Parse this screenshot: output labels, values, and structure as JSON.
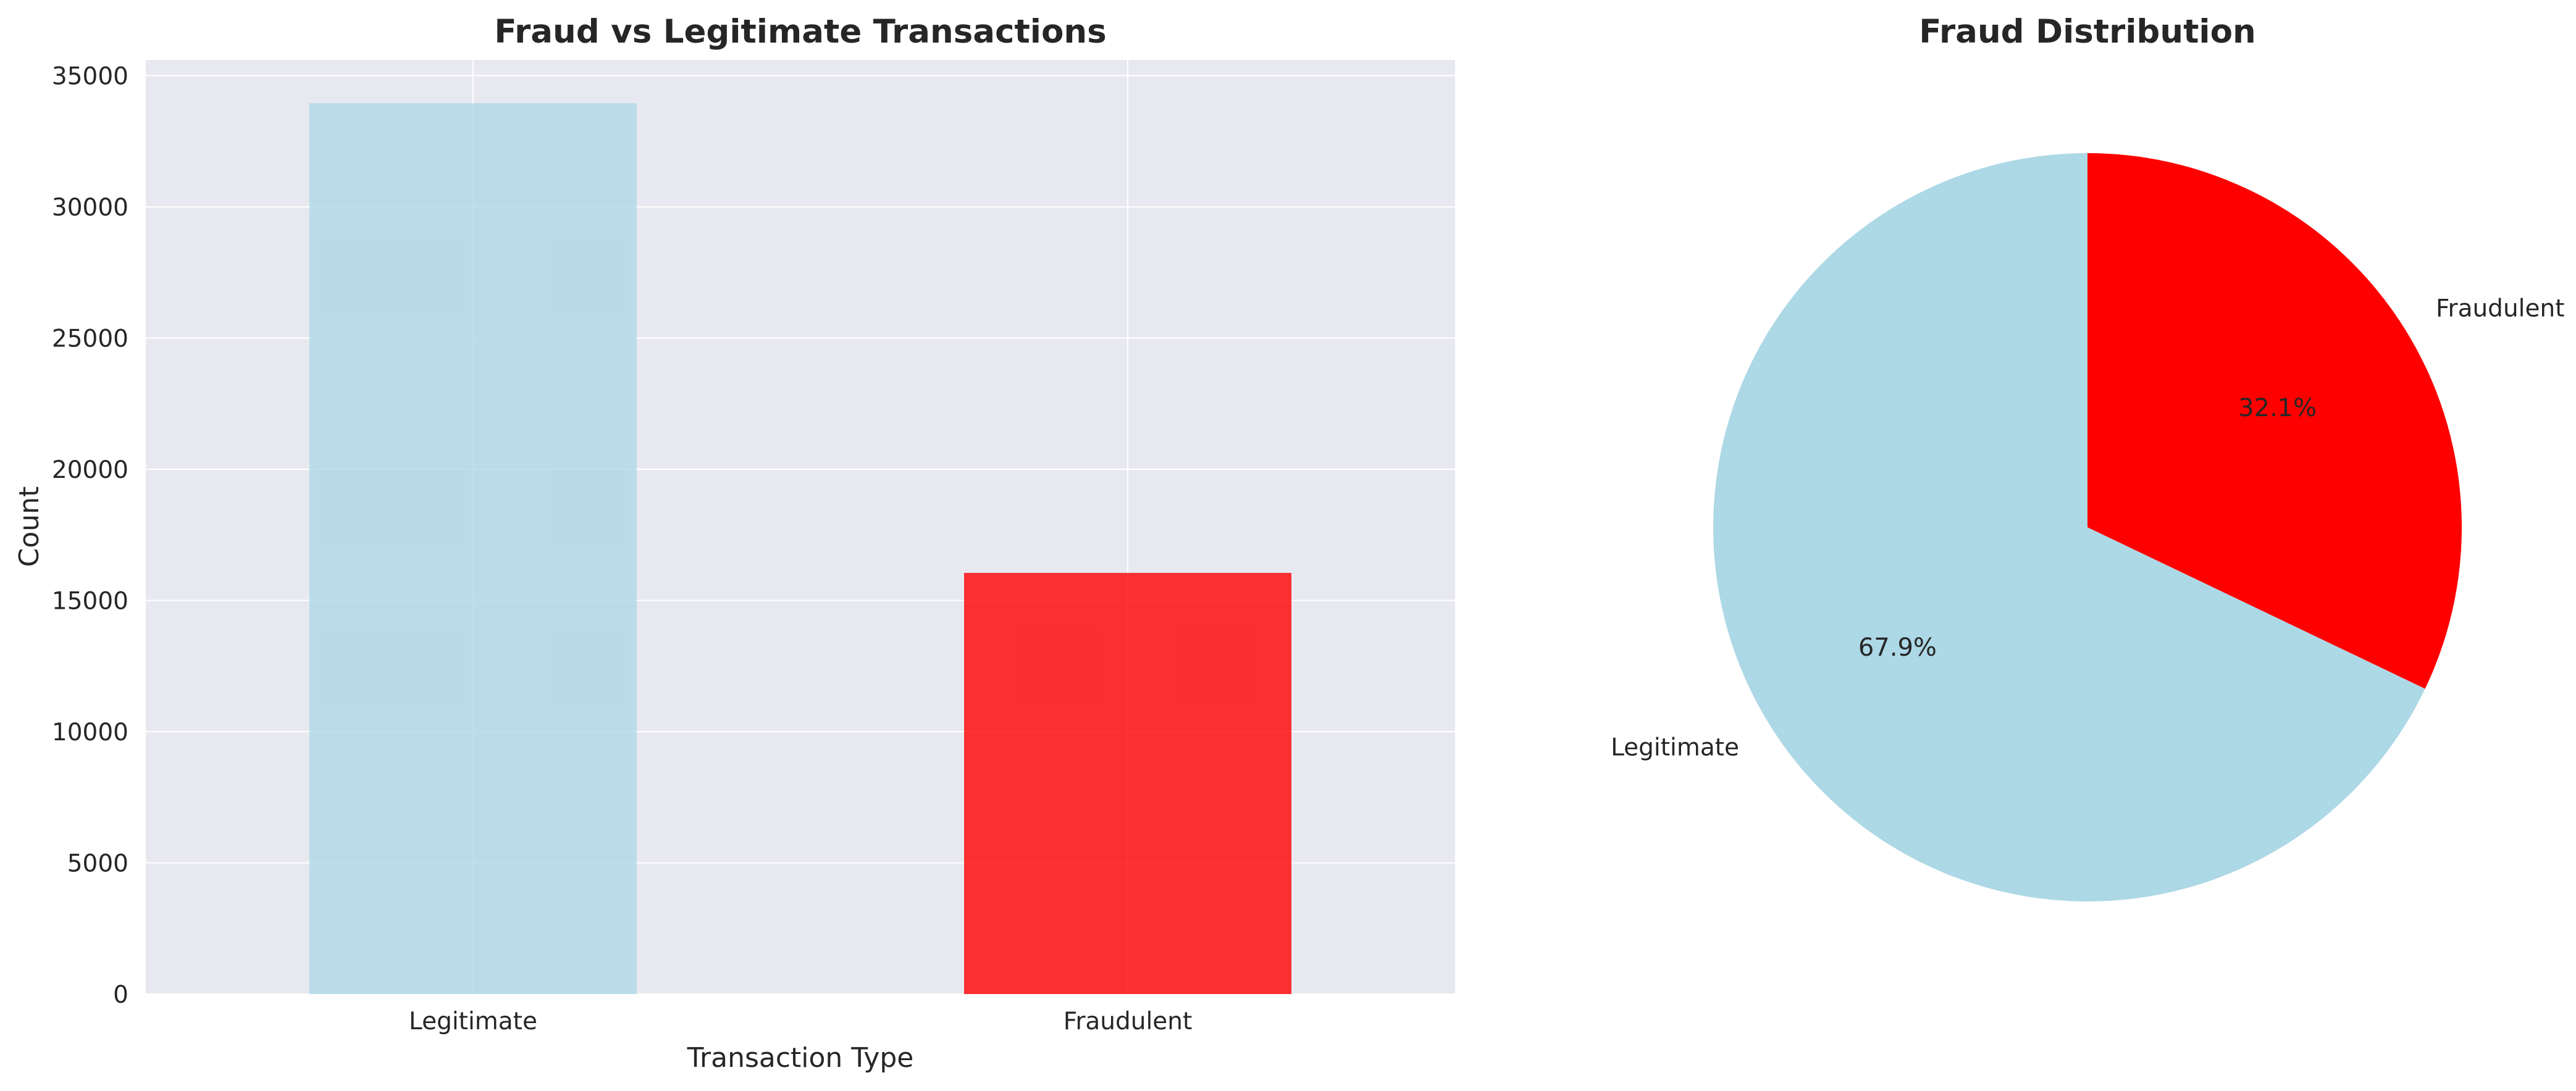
{
  "chart_data": [
    {
      "type": "bar",
      "title": "Fraud vs Legitimate Transactions",
      "xlabel": "Transaction Type",
      "ylabel": "Count",
      "categories": [
        "Legitimate",
        "Fraudulent"
      ],
      "values": [
        33950,
        16050
      ],
      "colors": [
        "#add8e6",
        "#ff0000"
      ],
      "ylim": [
        0,
        35600
      ],
      "yticks": [
        0,
        5000,
        10000,
        15000,
        20000,
        25000,
        30000,
        35000
      ],
      "grid": true,
      "background": "#e8e8f0"
    },
    {
      "type": "pie",
      "title": "Fraud Distribution",
      "labels": [
        "Legitimate",
        "Fraudulent"
      ],
      "values": [
        67.9,
        32.1
      ],
      "pct_labels": [
        "67.9%",
        "32.1%"
      ],
      "colors": [
        "#add8e6",
        "#ff0000"
      ]
    }
  ]
}
